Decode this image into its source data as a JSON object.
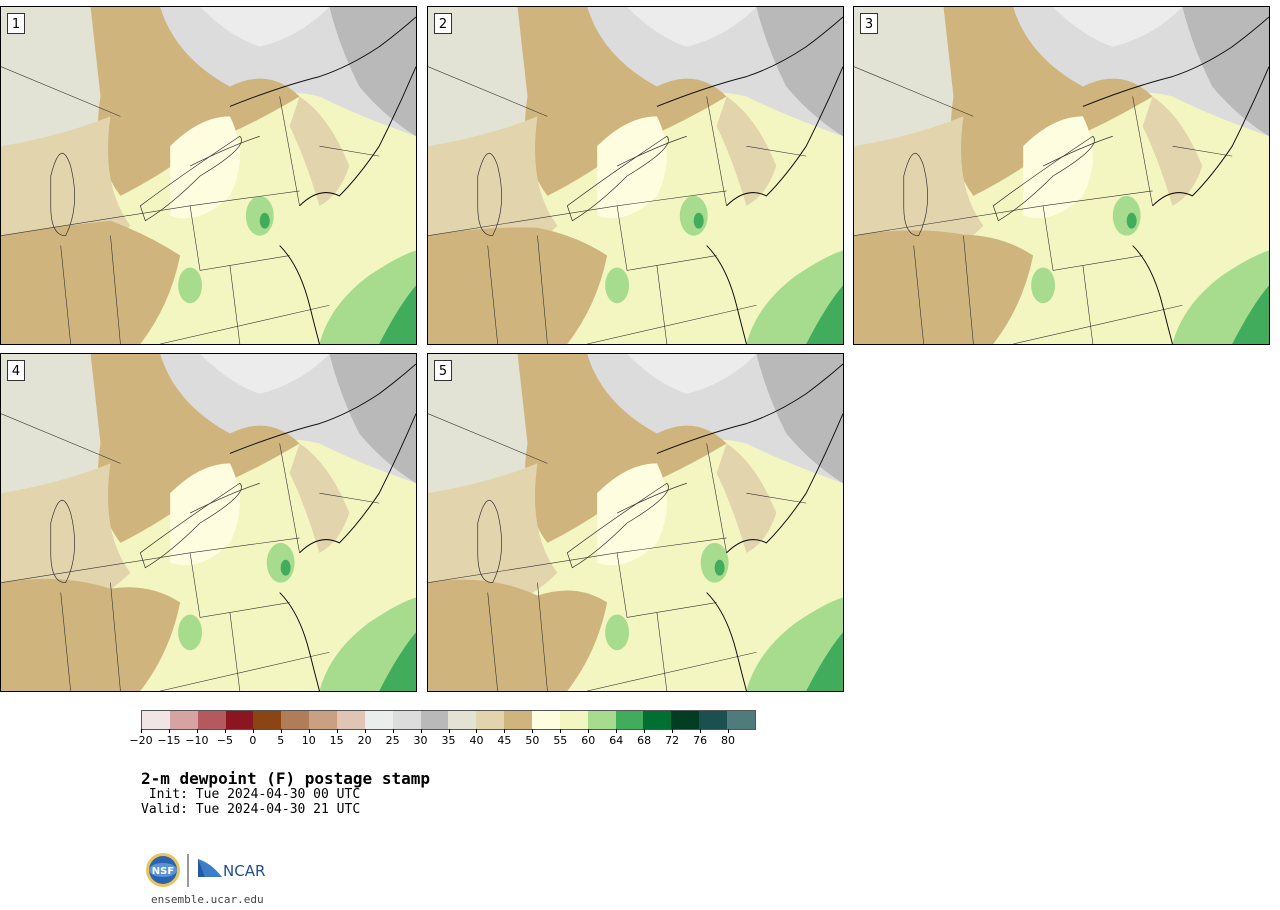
{
  "panels": [
    {
      "label": "1"
    },
    {
      "label": "2"
    },
    {
      "label": "3"
    },
    {
      "label": "4"
    },
    {
      "label": "5"
    }
  ],
  "colorbar": {
    "colors": [
      "#f0e4e4",
      "#d6a3a3",
      "#b45a5f",
      "#8b1520",
      "#8b4512",
      "#b07d58",
      "#c9a082",
      "#e0c4b4",
      "#eceeee",
      "#dcdcdc",
      "#b9b9b9",
      "#e2e2d5",
      "#e2d4ac",
      "#cfb57d",
      "#fffde0",
      "#f3f6c0",
      "#a7dc8e",
      "#41ad5c",
      "#007032",
      "#003d23",
      "#1a5050",
      "#4e7c7c"
    ],
    "ticks": [
      "−20",
      "−15",
      "−10",
      "−5",
      "0",
      "5",
      "10",
      "15",
      "20",
      "25",
      "30",
      "35",
      "40",
      "45",
      "50",
      "55",
      "60",
      "64",
      "68",
      "72",
      "76",
      "80"
    ]
  },
  "title": "2-m dewpoint (F) postage stamp",
  "init": " Init: Tue 2024-04-30 00 UTC",
  "valid": "Valid: Tue 2024-04-30 21 UTC",
  "logo_text": "NCAR",
  "nsf_text": "NSF",
  "site": "ensemble.ucar.edu",
  "map_colors": {
    "cold_gray": "#b9b9b9",
    "light_gray": "#dcdcdc",
    "pale_gray": "#e2e2d5",
    "tan_light": "#e2d4ac",
    "tan": "#cfb57d",
    "cream": "#fffde0",
    "yellow": "#f3f6c0",
    "green_light": "#a7dc8e",
    "green": "#41ad5c"
  }
}
